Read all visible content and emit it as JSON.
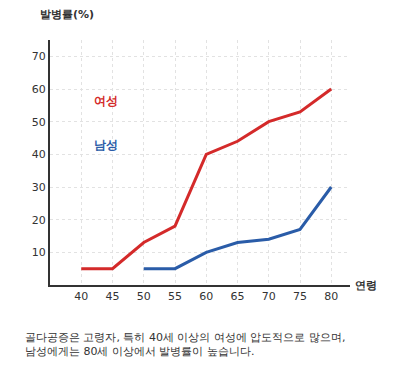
{
  "chart_data": {
    "type": "line",
    "y_label": "발병률(%)",
    "x_label": "연령",
    "caption": [
      "골다공증은 고령자, 특히 40세 이상의 여성에 압도적으로 많으며,",
      "남성에게는 80세 이상에서 발병률이 높습니다."
    ],
    "x": [
      40,
      45,
      50,
      55,
      60,
      65,
      70,
      75,
      80
    ],
    "series": [
      {
        "name": "여성",
        "color": "#d42a2a",
        "values": [
          5,
          5,
          13,
          18,
          40,
          44,
          50,
          53,
          60
        ]
      },
      {
        "name": "남성",
        "color": "#2a5ca8",
        "values": [
          null,
          null,
          5,
          5,
          10,
          13,
          14,
          17,
          30
        ]
      }
    ],
    "xlim": [
      35,
      83
    ],
    "xticks": [
      40,
      45,
      50,
      55,
      60,
      65,
      70,
      75,
      80
    ],
    "ylim": [
      0,
      75
    ],
    "yticks": [
      10,
      20,
      30,
      40,
      50,
      60,
      70
    ],
    "grid": true
  }
}
